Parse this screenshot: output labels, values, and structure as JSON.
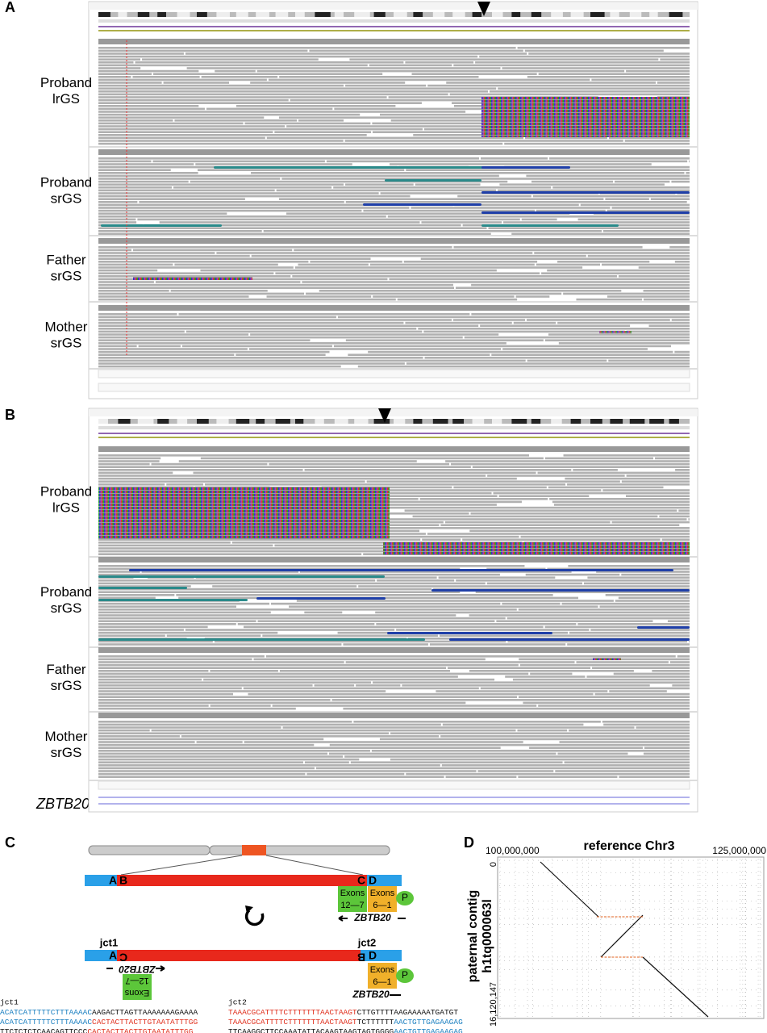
{
  "panel_a": {
    "label": "A",
    "tracks": [
      {
        "lines": [
          "Proband",
          "lrGS"
        ]
      },
      {
        "lines": [
          "Proband",
          "srGS"
        ]
      },
      {
        "lines": [
          "Father",
          "srGS"
        ]
      },
      {
        "lines": [
          "Mother",
          "srGS"
        ]
      }
    ]
  },
  "panel_b": {
    "label": "B",
    "tracks": [
      {
        "lines": [
          "Proband",
          "lrGS"
        ]
      },
      {
        "lines": [
          "Proband",
          "srGS"
        ]
      },
      {
        "lines": [
          "Father",
          "srGS"
        ]
      },
      {
        "lines": [
          "Mother",
          "srGS"
        ]
      }
    ],
    "gene": "ZBTB20"
  },
  "panel_c": {
    "label": "C",
    "breakpoints": [
      "A",
      "B",
      "C",
      "D"
    ],
    "rearranged": [
      "A",
      "C",
      "B",
      "D"
    ],
    "exon_boxes": [
      {
        "title": "Exons",
        "range": "12—7"
      },
      {
        "title": "Exons",
        "range": "6—1"
      }
    ],
    "promoter": "P",
    "gene": "ZBTB20",
    "sequences": [
      {
        "name": "jct1",
        "lines": [
          [
            {
              "text": "ACATCATTTTTCTTTAAAAC",
              "color": "#1a7fc0"
            },
            {
              "text": "AAGACTTAGTTAAAAAAAGAAAA",
              "color": "#111"
            }
          ],
          [
            {
              "text": "ACATCATTTTTCTTTAAAAC",
              "color": "#1a7fc0"
            },
            {
              "text": "CACTACTTACTTGTAATATTTGG",
              "color": "#e0301e"
            }
          ],
          [
            {
              "text": "TTCTCTCTCAACAGTTCCC",
              "color": "#111"
            },
            {
              "text": "CACTACTTACTTGTAATATTTGG",
              "color": "#e0301e"
            }
          ]
        ]
      },
      {
        "name": "jct2",
        "lines": [
          [
            {
              "text": "TAAACGCATTTTCTTTTTTTAACTAAGT",
              "color": "#e0301e"
            },
            {
              "text": "CTTGTTTTAAGAAAAATGATGT",
              "color": "#111"
            }
          ],
          [
            {
              "text": "TAAACGCATTTTCTTTTTTTAACTAAGT",
              "color": "#e0301e"
            },
            {
              "text": "TCTTTTTT",
              "color": "#111"
            },
            {
              "text": "AACTGTTGAGAAGAG",
              "color": "#1a7fc0"
            }
          ],
          [
            {
              "text": "TTCAAGGCTTCCAAATATTACAAGTAAGTAGTGGGG",
              "color": "#111"
            },
            {
              "text": "AACTGTTGAGAAGAG",
              "color": "#1a7fc0"
            }
          ]
        ]
      }
    ]
  },
  "panel_d": {
    "label": "D",
    "title": "reference Chr3",
    "x_start": "100,000,000",
    "x_end": "125,000,000",
    "y_label": [
      "paternal contig",
      "h1tq000063l"
    ],
    "y_start": "0",
    "y_end": "16,120,147"
  }
}
